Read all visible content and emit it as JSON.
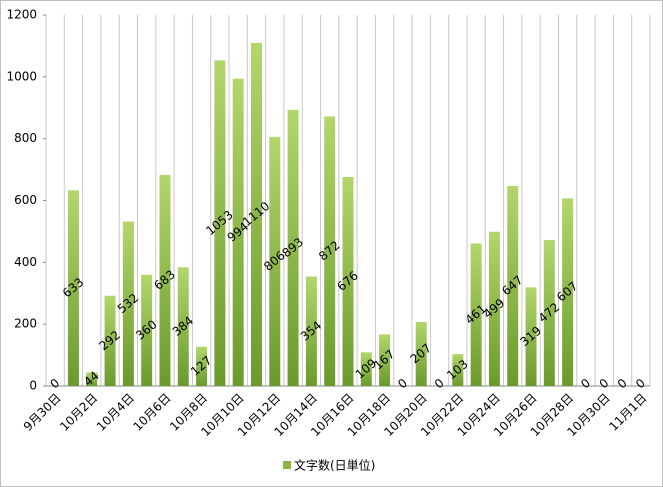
{
  "chart_data": {
    "type": "bar",
    "categories": [
      "9月30日",
      null,
      "10月2日",
      null,
      "10月4日",
      null,
      "10月6日",
      null,
      "10月8日",
      null,
      "10月10日",
      null,
      "10月12日",
      null,
      "10月14日",
      null,
      "10月16日",
      null,
      "10月18日",
      null,
      "10月20日",
      null,
      "10月22日",
      null,
      "10月24日",
      null,
      "10月26日",
      null,
      "10月28日",
      null,
      "10月30日",
      null,
      "11月1日"
    ],
    "series": [
      {
        "name": "文字数(日単位)",
        "color": "#8db543",
        "values": [
          0,
          633,
          44,
          292,
          532,
          360,
          683,
          384,
          127,
          1053,
          994,
          1110,
          806,
          893,
          354,
          872,
          676,
          109,
          167,
          0,
          207,
          0,
          103,
          461,
          499,
          647,
          319,
          472,
          607,
          0,
          0,
          0,
          0
        ]
      }
    ],
    "ylim": [
      0,
      1200
    ],
    "yticks": [
      0,
      200,
      400,
      600,
      800,
      1000,
      1200
    ],
    "grid": true,
    "legend": "bottom"
  }
}
